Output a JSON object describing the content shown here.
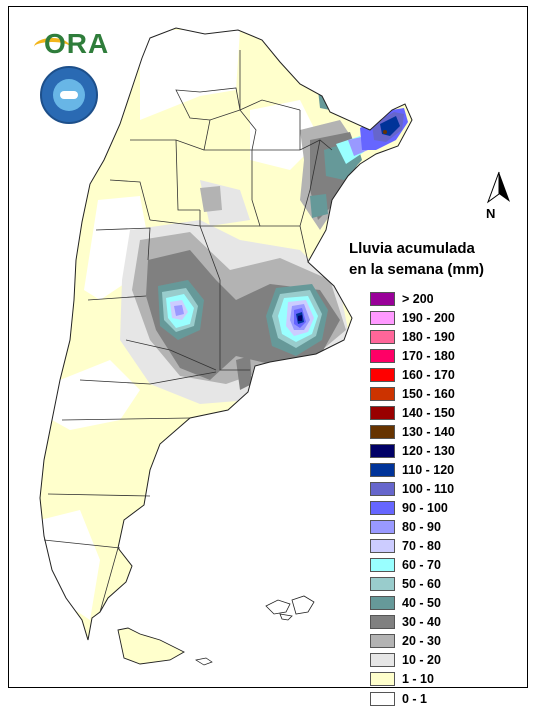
{
  "title": "Lluvia acumulada",
  "subtitle": "en la semana (mm)",
  "north_label": "N",
  "logos": {
    "ora": "ORA"
  },
  "icons": [
    "ora-logo",
    "smn-logo",
    "north-arrow-icon"
  ],
  "legend": [
    {
      "label": "> 200",
      "color": "#990099"
    },
    {
      "label": "190 - 200",
      "color": "#ff99ff"
    },
    {
      "label": "180 - 190",
      "color": "#ff6699"
    },
    {
      "label": "170 - 180",
      "color": "#ff0066"
    },
    {
      "label": "160 - 170",
      "color": "#ff0000"
    },
    {
      "label": "150 - 160",
      "color": "#cc3300"
    },
    {
      "label": "140 - 150",
      "color": "#990000"
    },
    {
      "label": "130 - 140",
      "color": "#663300"
    },
    {
      "label": "120 - 130",
      "color": "#000066"
    },
    {
      "label": "110 - 120",
      "color": "#003399"
    },
    {
      "label": "100 - 110",
      "color": "#6666cc"
    },
    {
      "label": "90 - 100",
      "color": "#6666ff"
    },
    {
      "label": "80 - 90",
      "color": "#9999ff"
    },
    {
      "label": "70 - 80",
      "color": "#ccccff"
    },
    {
      "label": "60 - 70",
      "color": "#99ffff"
    },
    {
      "label": "50 - 60",
      "color": "#99cccc"
    },
    {
      "label": "40 - 50",
      "color": "#669999"
    },
    {
      "label": "30 - 40",
      "color": "#808080"
    },
    {
      "label": "20 - 30",
      "color": "#b3b3b3"
    },
    {
      "label": "10 - 20",
      "color": "#e6e6e6"
    },
    {
      "label": "1 - 10",
      "color": "#ffffcc"
    },
    {
      "label": "0 - 1",
      "color": "#ffffff"
    }
  ]
}
